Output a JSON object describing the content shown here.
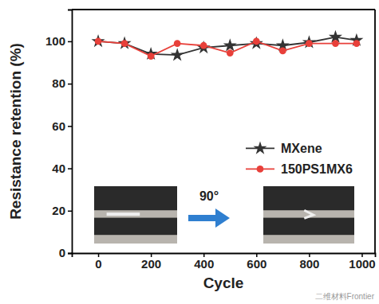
{
  "chart_data": {
    "type": "line",
    "x_label": "Cycle",
    "y_label": "Resistance retention (%)",
    "x": [
      0,
      100,
      200,
      300,
      400,
      500,
      600,
      700,
      800,
      900,
      980
    ],
    "series": [
      {
        "name": "MXene",
        "color": "#333333",
        "marker": "star",
        "line_style": "solid",
        "values": [
          100,
          99,
          94,
          93.5,
          97,
          98,
          99,
          98,
          99.5,
          102,
          100.5
        ]
      },
      {
        "name": "150PS1MX6",
        "color": "#e8403a",
        "marker": "circle",
        "line_style": "solid",
        "values": [
          100,
          99,
          93,
          99,
          98,
          94.5,
          100,
          95.5,
          99,
          99,
          99
        ]
      }
    ],
    "xlim": [
      -100,
      1050
    ],
    "xticks": [
      0,
      200,
      400,
      600,
      800,
      1000
    ],
    "ylim": [
      0,
      115
    ],
    "yticks": [
      0,
      20,
      40,
      60,
      80,
      100
    ],
    "grid": false,
    "legend": "right",
    "annotations": [
      "90°",
      "二维材料Frontier"
    ]
  }
}
